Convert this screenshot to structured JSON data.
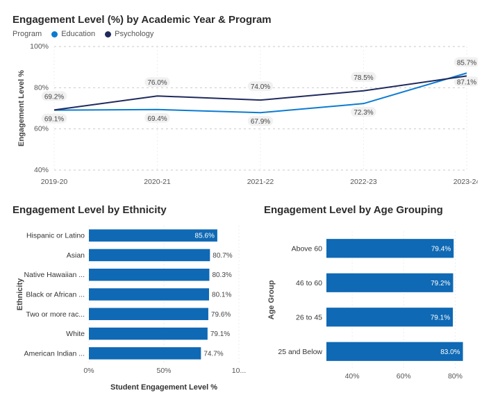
{
  "lineChart": {
    "type": "line",
    "title": "Engagement Level (%) by Academic Year & Program",
    "legendTitle": "Program",
    "ylabel": "Engagement Level %",
    "categories": [
      "2019-20",
      "2020-21",
      "2021-22",
      "2022-23",
      "2023-24"
    ],
    "ylim": [
      40,
      100
    ],
    "ytick_step": 20,
    "series": [
      {
        "name": "Education",
        "color": "#0a7bd1",
        "values": [
          69.1,
          69.4,
          67.9,
          72.3,
          87.1
        ]
      },
      {
        "name": "Psychology",
        "color": "#1f2a5c",
        "values": [
          69.2,
          76.0,
          74.0,
          78.5,
          85.7
        ]
      }
    ],
    "line_width": 2,
    "grid_color": "#c9c9c9",
    "background": "#ffffff",
    "label_fontsize": 10,
    "title_fontsize": 15
  },
  "ethnicityChart": {
    "type": "bar-horizontal",
    "title": "Engagement Level by Ethnicity",
    "xlabel": "Student Engagement Level %",
    "ylabel": "Ethnicity",
    "bar_color": "#0f69b4",
    "xlim": [
      0,
      100
    ],
    "xticks": [
      0,
      50,
      100
    ],
    "xtick_labels": [
      "0%",
      "50%",
      "10..."
    ],
    "items": [
      {
        "label": "Hispanic or Latino",
        "value": 85.6,
        "labelInside": true
      },
      {
        "label": "Asian",
        "value": 80.7,
        "labelInside": false
      },
      {
        "label": "Native Hawaiian ...",
        "value": 80.3,
        "labelInside": false
      },
      {
        "label": "Black or African ...",
        "value": 80.1,
        "labelInside": false
      },
      {
        "label": "Two or more rac...",
        "value": 79.6,
        "labelInside": false
      },
      {
        "label": "White",
        "value": 79.1,
        "labelInside": false
      },
      {
        "label": "American Indian ...",
        "value": 74.7,
        "labelInside": false
      }
    ]
  },
  "ageChart": {
    "type": "bar-horizontal",
    "title": "Engagement Level by Age Grouping",
    "ylabel": "Age Group",
    "bar_color": "#0f69b4",
    "xlim": [
      30,
      85
    ],
    "xticks": [
      40,
      60,
      80
    ],
    "xtick_labels": [
      "40%",
      "60%",
      "80%"
    ],
    "items": [
      {
        "label": "Above 60",
        "value": 79.4
      },
      {
        "label": "46 to 60",
        "value": 79.2
      },
      {
        "label": "26 to 45",
        "value": 79.1
      },
      {
        "label": "25 and Below",
        "value": 83.0
      }
    ]
  }
}
